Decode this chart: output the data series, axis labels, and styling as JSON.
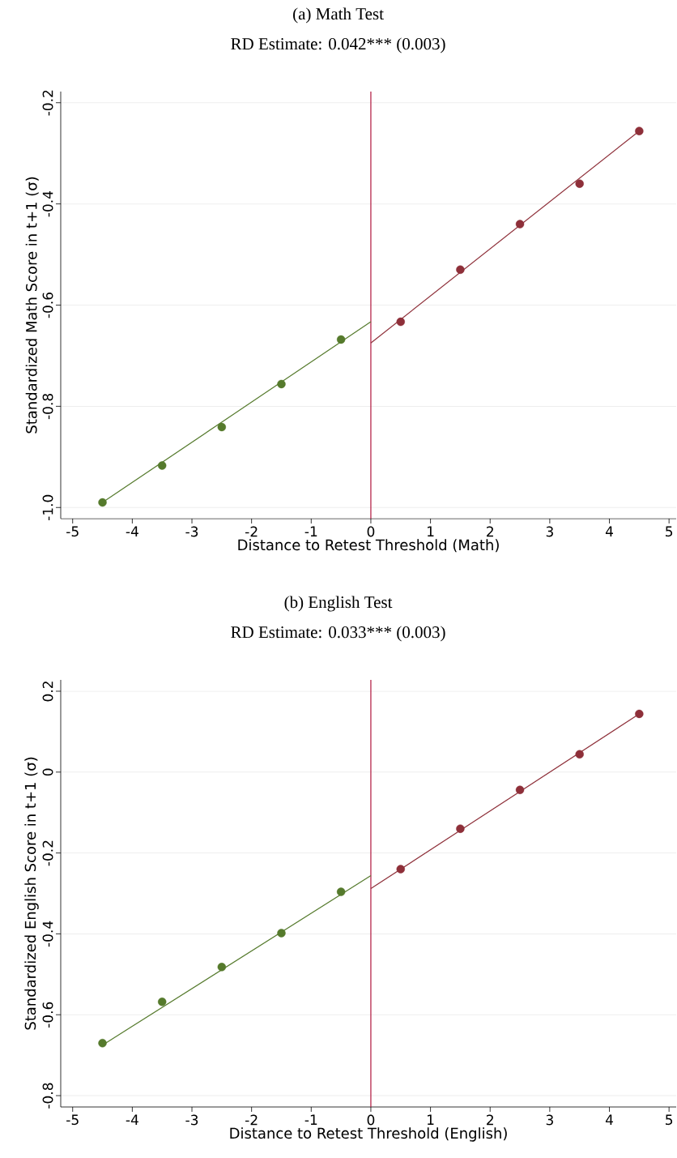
{
  "chart_data": [
    {
      "type": "scatter",
      "title": "(a) Math Test",
      "subtitle": "RD Estimate: 0.042*** (0.003)",
      "xlabel": "Distance to Retest Threshold (Math)",
      "ylabel": "Standardized Math Score in t+1 (σ)",
      "series": [
        {
          "marker": "circle",
          "color": "#557a2c",
          "x": [
            -4.5,
            -3.5,
            -2.5,
            -1.5,
            -0.5
          ],
          "values": [
            -0.99,
            -0.917,
            -0.841,
            -0.756,
            -0.668
          ]
        },
        {
          "marker": "circle",
          "color": "#8e2f39",
          "x": [
            0.5,
            1.5,
            2.5,
            3.5,
            4.5
          ],
          "values": [
            -0.633,
            -0.53,
            -0.44,
            -0.36,
            -0.256
          ]
        },
        {
          "type": "line",
          "marker": "none",
          "color": "#557a2c",
          "x": [
            -4.5,
            0
          ],
          "values": [
            -0.99,
            -0.633
          ]
        },
        {
          "type": "line",
          "marker": "none",
          "color": "#8e2f39",
          "x": [
            0,
            4.5
          ],
          "values": [
            -0.675,
            -0.256
          ]
        }
      ],
      "xlim": [
        -5.2,
        5.12
      ],
      "ylim": [
        -1.022,
        -0.178
      ],
      "xticks": [
        -5,
        -4,
        -3,
        -2,
        -1,
        0,
        1,
        2,
        3,
        4,
        5
      ],
      "yticks": [
        {
          "value": -1,
          "label": "-1.0"
        },
        -0.8,
        -0.6,
        -0.4,
        -0.2
      ],
      "grid": "y",
      "ref_lines": [
        {
          "axis": "x",
          "value": 0,
          "color": "#b0143c"
        }
      ]
    },
    {
      "type": "scatter",
      "title": "(b) English Test",
      "subtitle": "RD Estimate: 0.033*** (0.003)",
      "xlabel": "Distance to Retest Threshold (English)",
      "ylabel": "Standardized English Score in t+1 (σ)",
      "series": [
        {
          "marker": "circle",
          "color": "#557a2c",
          "x": [
            -4.5,
            -3.5,
            -2.5,
            -1.5,
            -0.5
          ],
          "values": [
            -0.67,
            -0.568,
            -0.482,
            -0.398,
            -0.296
          ]
        },
        {
          "marker": "circle",
          "color": "#8e2f39",
          "x": [
            0.5,
            1.5,
            2.5,
            3.5,
            4.5
          ],
          "values": [
            -0.24,
            -0.14,
            -0.044,
            0.044,
            0.144
          ]
        },
        {
          "type": "line",
          "marker": "none",
          "color": "#557a2c",
          "x": [
            -4.5,
            0
          ],
          "values": [
            -0.675,
            -0.256
          ]
        },
        {
          "type": "line",
          "marker": "none",
          "color": "#8e2f39",
          "x": [
            0,
            4.5
          ],
          "values": [
            -0.288,
            0.144
          ]
        }
      ],
      "xlim": [
        -5.2,
        5.12
      ],
      "ylim": [
        -0.828,
        0.228
      ],
      "xticks": [
        -5,
        -4,
        -3,
        -2,
        -1,
        0,
        1,
        2,
        3,
        4,
        5
      ],
      "yticks": [
        0.2,
        0,
        -0.2,
        -0.4,
        -0.6,
        -0.8
      ],
      "grid": "y",
      "ref_lines": [
        {
          "axis": "x",
          "value": 0,
          "color": "#b0143c"
        }
      ]
    }
  ]
}
